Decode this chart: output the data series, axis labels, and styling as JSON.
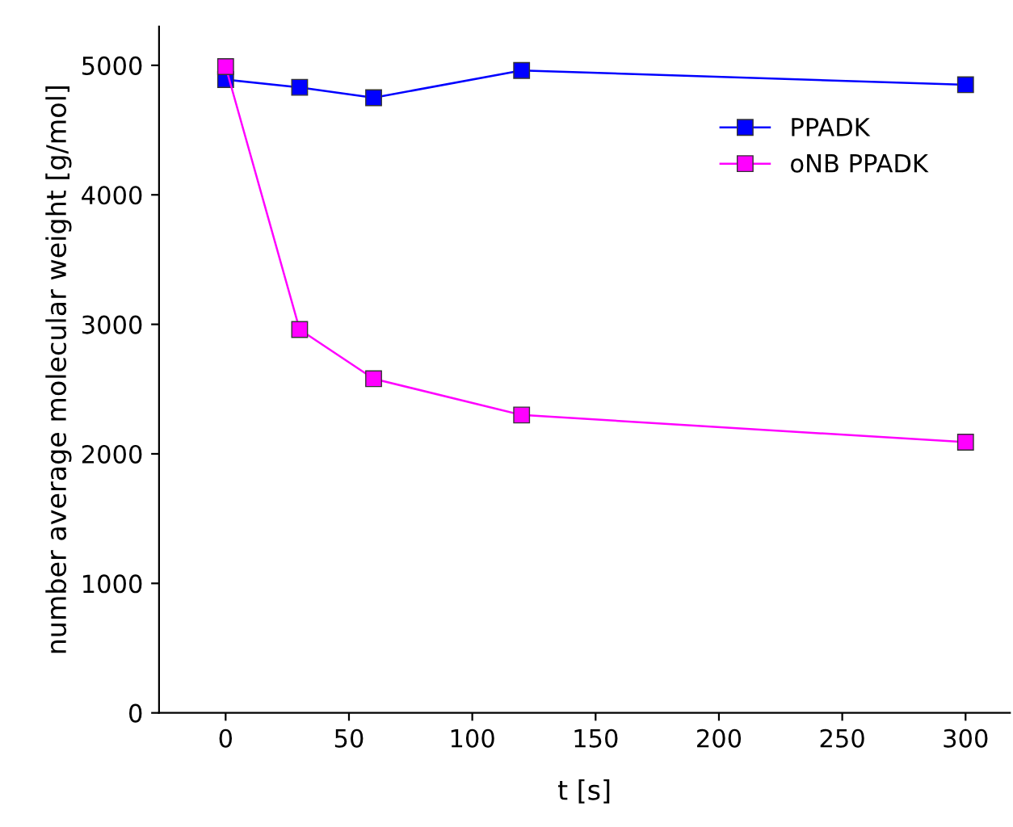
{
  "chart_data": {
    "type": "line",
    "xlabel": "t [s]",
    "ylabel": "number average molecular weight [g/mol]",
    "series": [
      {
        "name": "PPADK",
        "color": "#0000ff",
        "x": [
          0,
          30,
          60,
          120,
          300
        ],
        "values": [
          4890,
          4830,
          4750,
          4960,
          4850
        ]
      },
      {
        "name": "oNB PPADK",
        "color": "#ff00ff",
        "x": [
          0,
          30,
          60,
          120,
          300
        ],
        "values": [
          4990,
          2960,
          2580,
          2300,
          2090
        ]
      }
    ],
    "xlim": [
      -27,
      318
    ],
    "xticks": [
      0,
      50,
      100,
      150,
      200,
      250,
      300
    ],
    "ylim": [
      0,
      5300
    ],
    "yticks": [
      0,
      1000,
      2000,
      3000,
      4000,
      5000
    ],
    "marker": "square",
    "line_style": "solid",
    "grid": false,
    "legend": "top right"
  }
}
